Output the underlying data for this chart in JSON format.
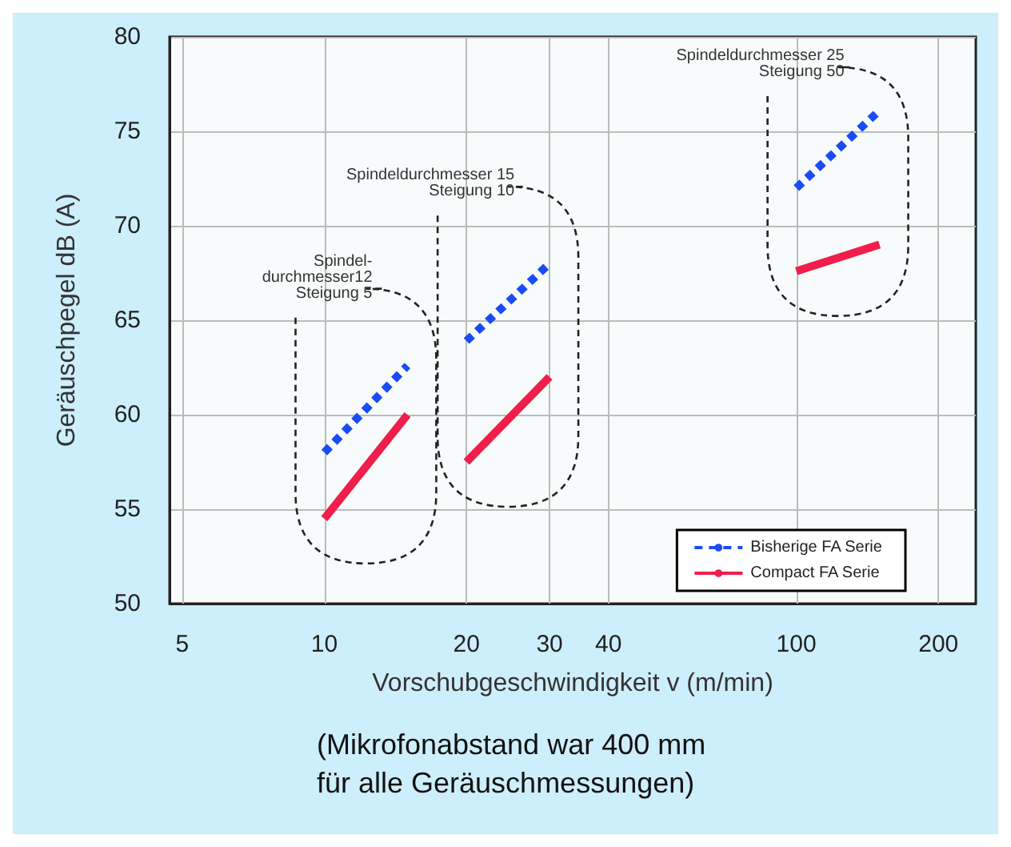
{
  "chart_data": {
    "type": "line",
    "xlabel": "Vorschubgeschwindigkeit v (m/min)",
    "ylabel": "Geräuschpegel dB (A)",
    "x": [
      10,
      15,
      17,
      20,
      30,
      60,
      100,
      150
    ],
    "series": [
      {
        "name": "Bisherige FA Serie",
        "color": "#1a4cf5",
        "line_style": "dotted",
        "values": [
          58,
          62.6,
          null,
          63.9,
          68,
          null,
          72,
          76.1
        ]
      },
      {
        "name": "Compact FA Serie",
        "color": "#f01e4a",
        "line_style": "solid",
        "values": [
          54.5,
          60,
          null,
          57.5,
          62,
          null,
          67.6,
          69
        ]
      }
    ],
    "log": "x",
    "xlim": [
      4.7,
      240
    ],
    "xticks": [
      5,
      10,
      20,
      30,
      40,
      100,
      200
    ],
    "ylim": [
      50,
      80
    ],
    "yticks": [
      50,
      55,
      60,
      65,
      70,
      75,
      80
    ],
    "grid": true,
    "legend": "bottom right",
    "marker": "none",
    "annotations": [
      "Spindel-\ndurchmesser12\nSteigung 5",
      "Spindeldurchmesser 15\nSteigung 10",
      "Spindeldurchmesser 25\nSteigung 50",
      "(Mikrofonabstand war 400 mm\nfür alle Geräuschmessungen)"
    ]
  }
}
